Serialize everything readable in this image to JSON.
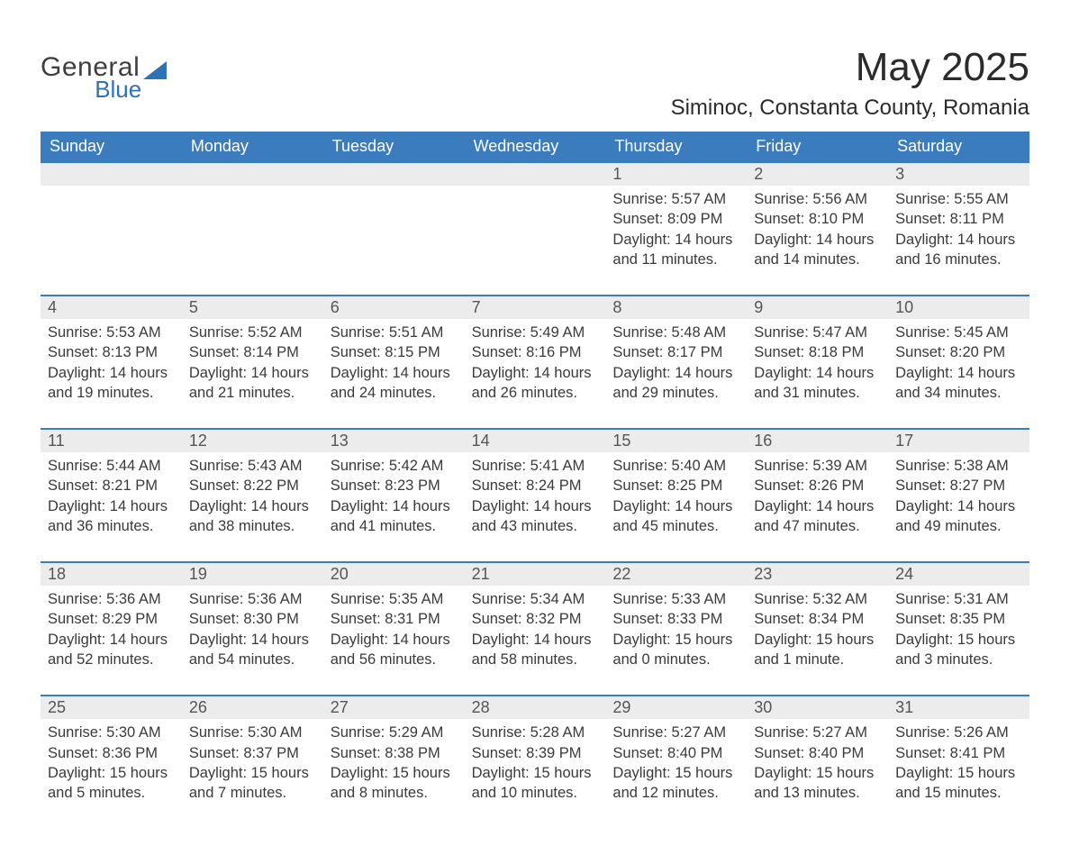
{
  "brand": {
    "word1": "General",
    "word2": "Blue",
    "logo_color": "#2f72b6"
  },
  "title": "May 2025",
  "location": "Siminoc, Constanta County, Romania",
  "colors": {
    "header_bg": "#3a7cbd",
    "header_text": "#ffffff",
    "daynum_bg": "#ececec",
    "row_divider": "#3a7cbd",
    "text": "#3a3a3a",
    "background": "#ffffff"
  },
  "weekdays": [
    "Sunday",
    "Monday",
    "Tuesday",
    "Wednesday",
    "Thursday",
    "Friday",
    "Saturday"
  ],
  "leading_blanks": 4,
  "days": [
    {
      "n": "1",
      "sunrise": "Sunrise: 5:57 AM",
      "sunset": "Sunset: 8:09 PM",
      "daylight": "Daylight: 14 hours and 11 minutes."
    },
    {
      "n": "2",
      "sunrise": "Sunrise: 5:56 AM",
      "sunset": "Sunset: 8:10 PM",
      "daylight": "Daylight: 14 hours and 14 minutes."
    },
    {
      "n": "3",
      "sunrise": "Sunrise: 5:55 AM",
      "sunset": "Sunset: 8:11 PM",
      "daylight": "Daylight: 14 hours and 16 minutes."
    },
    {
      "n": "4",
      "sunrise": "Sunrise: 5:53 AM",
      "sunset": "Sunset: 8:13 PM",
      "daylight": "Daylight: 14 hours and 19 minutes."
    },
    {
      "n": "5",
      "sunrise": "Sunrise: 5:52 AM",
      "sunset": "Sunset: 8:14 PM",
      "daylight": "Daylight: 14 hours and 21 minutes."
    },
    {
      "n": "6",
      "sunrise": "Sunrise: 5:51 AM",
      "sunset": "Sunset: 8:15 PM",
      "daylight": "Daylight: 14 hours and 24 minutes."
    },
    {
      "n": "7",
      "sunrise": "Sunrise: 5:49 AM",
      "sunset": "Sunset: 8:16 PM",
      "daylight": "Daylight: 14 hours and 26 minutes."
    },
    {
      "n": "8",
      "sunrise": "Sunrise: 5:48 AM",
      "sunset": "Sunset: 8:17 PM",
      "daylight": "Daylight: 14 hours and 29 minutes."
    },
    {
      "n": "9",
      "sunrise": "Sunrise: 5:47 AM",
      "sunset": "Sunset: 8:18 PM",
      "daylight": "Daylight: 14 hours and 31 minutes."
    },
    {
      "n": "10",
      "sunrise": "Sunrise: 5:45 AM",
      "sunset": "Sunset: 8:20 PM",
      "daylight": "Daylight: 14 hours and 34 minutes."
    },
    {
      "n": "11",
      "sunrise": "Sunrise: 5:44 AM",
      "sunset": "Sunset: 8:21 PM",
      "daylight": "Daylight: 14 hours and 36 minutes."
    },
    {
      "n": "12",
      "sunrise": "Sunrise: 5:43 AM",
      "sunset": "Sunset: 8:22 PM",
      "daylight": "Daylight: 14 hours and 38 minutes."
    },
    {
      "n": "13",
      "sunrise": "Sunrise: 5:42 AM",
      "sunset": "Sunset: 8:23 PM",
      "daylight": "Daylight: 14 hours and 41 minutes."
    },
    {
      "n": "14",
      "sunrise": "Sunrise: 5:41 AM",
      "sunset": "Sunset: 8:24 PM",
      "daylight": "Daylight: 14 hours and 43 minutes."
    },
    {
      "n": "15",
      "sunrise": "Sunrise: 5:40 AM",
      "sunset": "Sunset: 8:25 PM",
      "daylight": "Daylight: 14 hours and 45 minutes."
    },
    {
      "n": "16",
      "sunrise": "Sunrise: 5:39 AM",
      "sunset": "Sunset: 8:26 PM",
      "daylight": "Daylight: 14 hours and 47 minutes."
    },
    {
      "n": "17",
      "sunrise": "Sunrise: 5:38 AM",
      "sunset": "Sunset: 8:27 PM",
      "daylight": "Daylight: 14 hours and 49 minutes."
    },
    {
      "n": "18",
      "sunrise": "Sunrise: 5:36 AM",
      "sunset": "Sunset: 8:29 PM",
      "daylight": "Daylight: 14 hours and 52 minutes."
    },
    {
      "n": "19",
      "sunrise": "Sunrise: 5:36 AM",
      "sunset": "Sunset: 8:30 PM",
      "daylight": "Daylight: 14 hours and 54 minutes."
    },
    {
      "n": "20",
      "sunrise": "Sunrise: 5:35 AM",
      "sunset": "Sunset: 8:31 PM",
      "daylight": "Daylight: 14 hours and 56 minutes."
    },
    {
      "n": "21",
      "sunrise": "Sunrise: 5:34 AM",
      "sunset": "Sunset: 8:32 PM",
      "daylight": "Daylight: 14 hours and 58 minutes."
    },
    {
      "n": "22",
      "sunrise": "Sunrise: 5:33 AM",
      "sunset": "Sunset: 8:33 PM",
      "daylight": "Daylight: 15 hours and 0 minutes."
    },
    {
      "n": "23",
      "sunrise": "Sunrise: 5:32 AM",
      "sunset": "Sunset: 8:34 PM",
      "daylight": "Daylight: 15 hours and 1 minute."
    },
    {
      "n": "24",
      "sunrise": "Sunrise: 5:31 AM",
      "sunset": "Sunset: 8:35 PM",
      "daylight": "Daylight: 15 hours and 3 minutes."
    },
    {
      "n": "25",
      "sunrise": "Sunrise: 5:30 AM",
      "sunset": "Sunset: 8:36 PM",
      "daylight": "Daylight: 15 hours and 5 minutes."
    },
    {
      "n": "26",
      "sunrise": "Sunrise: 5:30 AM",
      "sunset": "Sunset: 8:37 PM",
      "daylight": "Daylight: 15 hours and 7 minutes."
    },
    {
      "n": "27",
      "sunrise": "Sunrise: 5:29 AM",
      "sunset": "Sunset: 8:38 PM",
      "daylight": "Daylight: 15 hours and 8 minutes."
    },
    {
      "n": "28",
      "sunrise": "Sunrise: 5:28 AM",
      "sunset": "Sunset: 8:39 PM",
      "daylight": "Daylight: 15 hours and 10 minutes."
    },
    {
      "n": "29",
      "sunrise": "Sunrise: 5:27 AM",
      "sunset": "Sunset: 8:40 PM",
      "daylight": "Daylight: 15 hours and 12 minutes."
    },
    {
      "n": "30",
      "sunrise": "Sunrise: 5:27 AM",
      "sunset": "Sunset: 8:40 PM",
      "daylight": "Daylight: 15 hours and 13 minutes."
    },
    {
      "n": "31",
      "sunrise": "Sunrise: 5:26 AM",
      "sunset": "Sunset: 8:41 PM",
      "daylight": "Daylight: 15 hours and 15 minutes."
    }
  ]
}
